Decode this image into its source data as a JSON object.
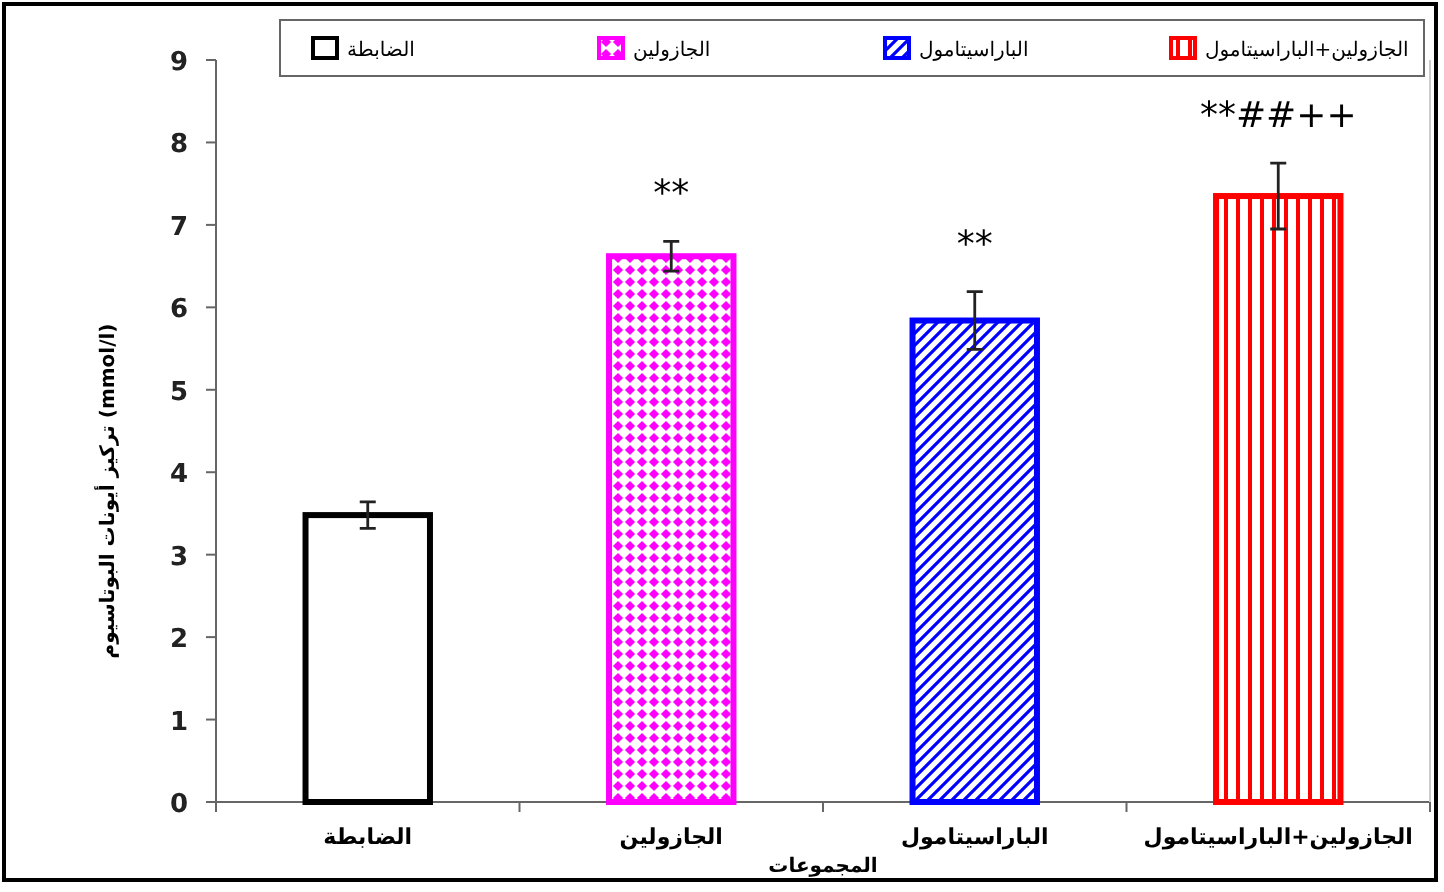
{
  "chart_data": {
    "type": "bar",
    "xlabel": "المجموعات",
    "ylabel": "تركيز أيونات البوتاسيوم (mmol/l)",
    "categories": [
      "الضابطة",
      "الجازولين",
      "الباراسيتامول",
      "الجازولين+الباراسيتامول"
    ],
    "series": [
      {
        "name": "الضابطة",
        "color": "#000000",
        "values": [
          3.48,
          null,
          null,
          null
        ],
        "errors": [
          0.16,
          null,
          null,
          null
        ]
      },
      {
        "name": "الجازولين",
        "color": "#ff00ff",
        "values": [
          null,
          6.62,
          null,
          null
        ],
        "errors": [
          null,
          0.18,
          null,
          null
        ]
      },
      {
        "name": "الباراسيتامول",
        "color": "#0000ff",
        "values": [
          null,
          null,
          5.84,
          null
        ],
        "errors": [
          null,
          null,
          0.35,
          null
        ]
      },
      {
        "name": "الجازولين+الباراسيتامول",
        "color": "#ff0000",
        "values": [
          null,
          null,
          null,
          7.35
        ],
        "errors": [
          null,
          null,
          null,
          0.4
        ]
      }
    ],
    "ylim": [
      0,
      9
    ],
    "yticks": [
      0,
      1,
      2,
      3,
      4,
      5,
      6,
      7,
      8,
      9
    ],
    "legend": "top",
    "annotations": [
      "**",
      "**",
      "**##++"
    ]
  }
}
